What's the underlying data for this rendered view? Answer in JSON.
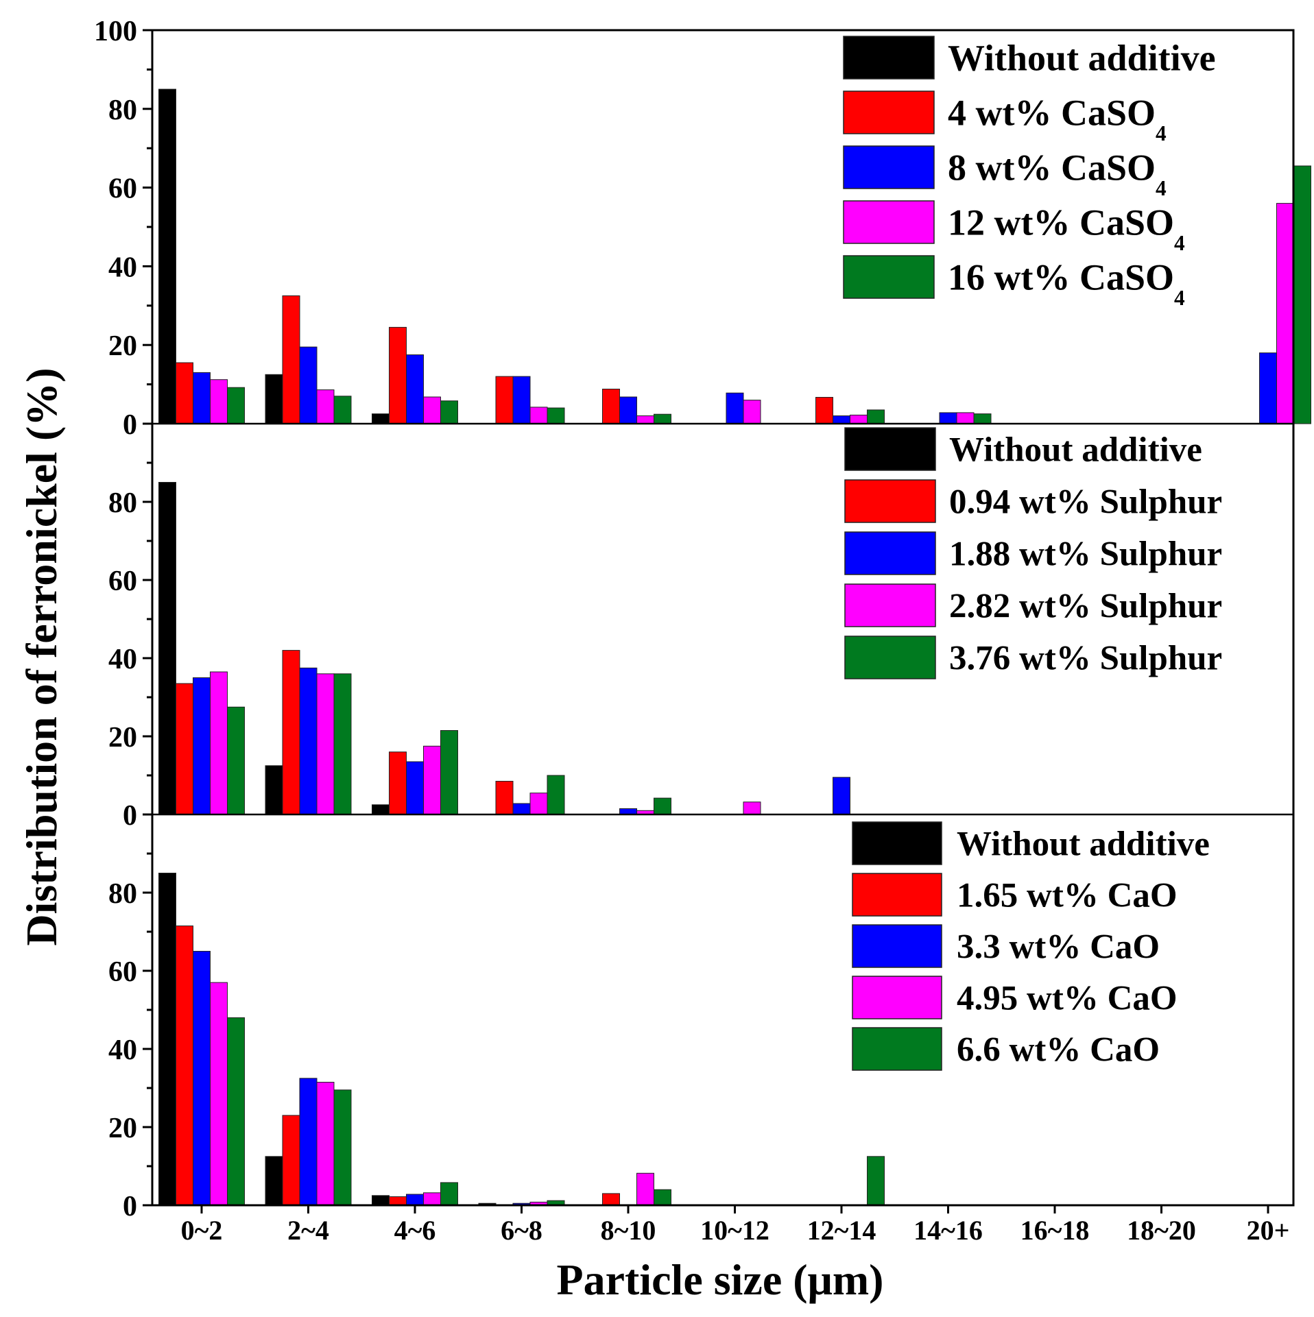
{
  "chart_data": {
    "type": "bar",
    "categories": [
      "0~2",
      "2~4",
      "4~6",
      "6~8",
      "8~10",
      "10~12",
      "12~14",
      "14~16",
      "16~18",
      "18~20",
      "20+"
    ],
    "xlabel": "Particle size (μm)",
    "ylabel": "Distribution of ferronickel (%)",
    "panels": [
      {
        "ylim": [
          0,
          100
        ],
        "yticks": [
          "0",
          "20",
          "40",
          "60",
          "80",
          "100"
        ],
        "legend_position": "top-right",
        "series": [
          {
            "name": "Without additive",
            "label_main": "Without additive",
            "label_sub": "",
            "color": "#000000",
            "values": [
              85,
              12.5,
              2.5,
              0,
              0,
              0,
              0,
              0,
              0,
              0,
              0
            ]
          },
          {
            "name": "4 wt% CaSO4",
            "label_main": "4 wt% CaSO",
            "label_sub": "4",
            "color": "#ff0000",
            "values": [
              15.5,
              32.5,
              24.5,
              12,
              8.8,
              0,
              6.7,
              0,
              0,
              0,
              0
            ]
          },
          {
            "name": "8 wt% CaSO4",
            "label_main": "8 wt% CaSO",
            "label_sub": "4",
            "color": "#0000ff",
            "values": [
              13,
              19.5,
              17.5,
              12,
              6.8,
              7.8,
              2,
              2.8,
              0,
              0,
              18
            ]
          },
          {
            "name": "12 wt% CaSO4",
            "label_main": "12 wt% CaSO",
            "label_sub": "4",
            "color": "#ff00ff",
            "values": [
              11.2,
              8.6,
              6.8,
              4.2,
              2,
              6,
              2.2,
              2.8,
              0,
              0,
              56
            ]
          },
          {
            "name": "16 wt% CaSO4",
            "label_main": "16 wt% CaSO",
            "label_sub": "4",
            "color": "#007a1f",
            "values": [
              9.2,
              7,
              5.8,
              4,
              2.4,
              0,
              3.5,
              2.5,
              0,
              0,
              65.5
            ]
          }
        ]
      },
      {
        "ylim": [
          0,
          100
        ],
        "yticks": [
          "0",
          "20",
          "40",
          "60",
          "80"
        ],
        "legend_position": "top-right",
        "series": [
          {
            "name": "Without additive",
            "label_main": "Without additive",
            "label_sub": "",
            "color": "#000000",
            "values": [
              85,
              12.5,
              2.5,
              0,
              0,
              0,
              0,
              0,
              0,
              0,
              0
            ]
          },
          {
            "name": "0.94 wt% Sulphur",
            "label_main": "0.94 wt% Sulphur",
            "label_sub": "",
            "color": "#ff0000",
            "values": [
              33.5,
              42,
              16,
              8.5,
              0,
              0,
              0,
              0,
              0,
              0,
              0
            ]
          },
          {
            "name": "1.88 wt% Sulphur",
            "label_main": "1.88 wt% Sulphur",
            "label_sub": "",
            "color": "#0000ff",
            "values": [
              35,
              37.5,
              13.5,
              2.8,
              1.5,
              0,
              9.5,
              0,
              0,
              0,
              0
            ]
          },
          {
            "name": "2.82 wt% Sulphur",
            "label_main": "2.82 wt% Sulphur",
            "label_sub": "",
            "color": "#ff00ff",
            "values": [
              36.5,
              36,
              17.5,
              5.5,
              1,
              3.2,
              0,
              0,
              0,
              0,
              0
            ]
          },
          {
            "name": "3.76 wt% Sulphur",
            "label_main": "3.76 wt% Sulphur",
            "label_sub": "",
            "color": "#007a1f",
            "values": [
              27.5,
              36,
              21.5,
              10,
              4.2,
              0,
              0,
              0,
              0,
              0,
              0
            ]
          }
        ]
      },
      {
        "ylim": [
          0,
          100
        ],
        "yticks": [
          "0",
          "20",
          "40",
          "60",
          "80"
        ],
        "legend_position": "top-right",
        "series": [
          {
            "name": "Without additive",
            "label_main": "Without additive",
            "label_sub": "",
            "color": "#000000",
            "values": [
              85,
              12.5,
              2.5,
              0.5,
              0,
              0,
              0,
              0,
              0,
              0,
              0
            ]
          },
          {
            "name": "1.65 wt% CaO",
            "label_main": "1.65 wt% CaO",
            "label_sub": "",
            "color": "#ff0000",
            "values": [
              71.5,
              23,
              2.2,
              0,
              3,
              0,
              0,
              0,
              0,
              0,
              0
            ]
          },
          {
            "name": "3.3 wt% CaO",
            "label_main": "3.3 wt% CaO",
            "label_sub": "",
            "color": "#0000ff",
            "values": [
              65,
              32.5,
              2.8,
              0.5,
              0,
              0,
              0,
              0,
              0,
              0,
              0
            ]
          },
          {
            "name": "4.95 wt% CaO",
            "label_main": "4.95 wt% CaO",
            "label_sub": "",
            "color": "#ff00ff",
            "values": [
              57,
              31.5,
              3.2,
              0.8,
              8.2,
              0,
              0,
              0,
              0,
              0,
              0
            ]
          },
          {
            "name": "6.6 wt% CaO",
            "label_main": "6.6 wt% CaO",
            "label_sub": "",
            "color": "#007a1f",
            "values": [
              48,
              29.5,
              5.8,
              1.2,
              4,
              0,
              12.5,
              0,
              0,
              0,
              0
            ]
          }
        ]
      }
    ]
  }
}
